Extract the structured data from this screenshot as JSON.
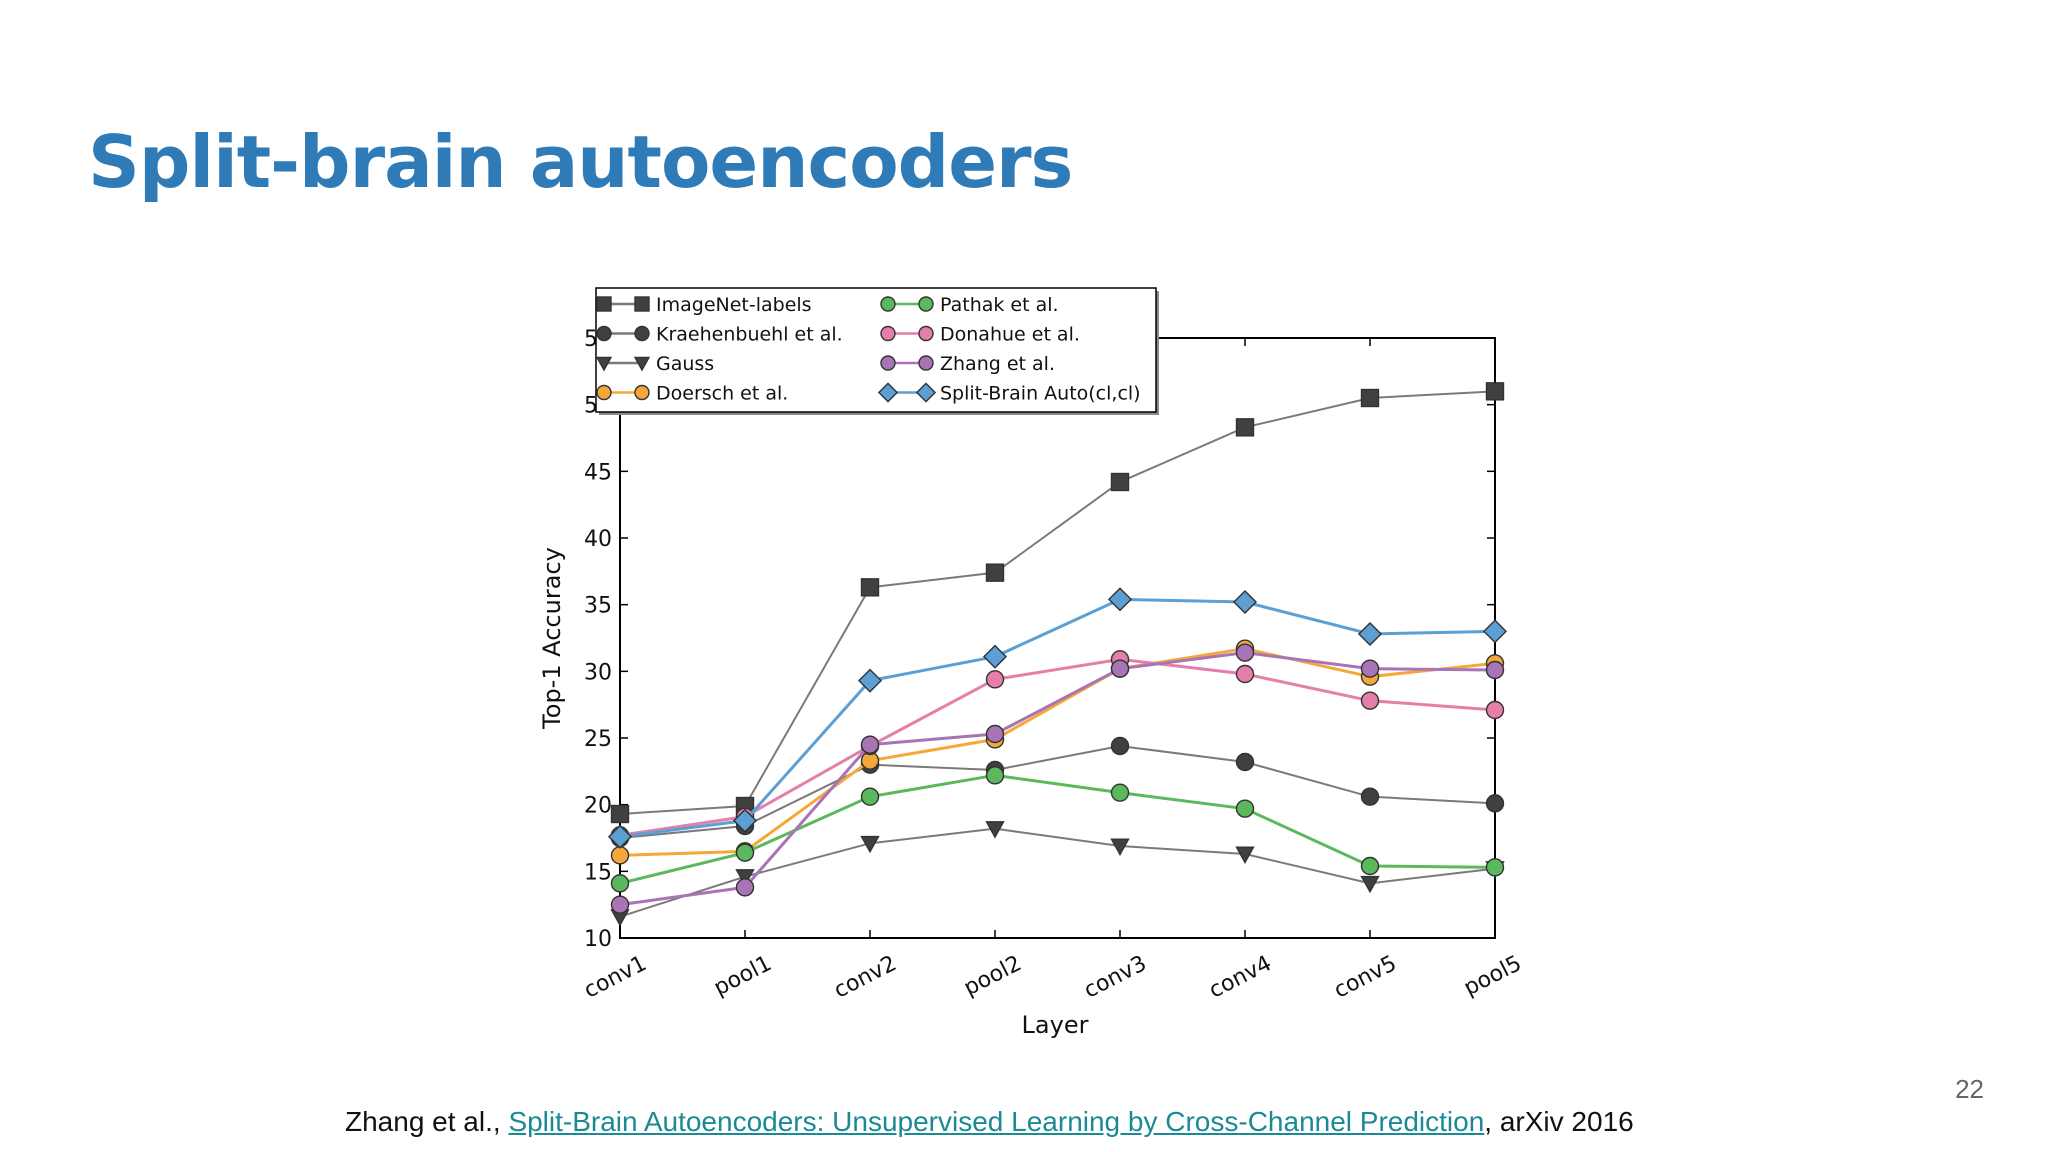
{
  "slide": {
    "title": "Split-brain autoencoders",
    "page_number": "22"
  },
  "citation": {
    "prefix": "Zhang et al., ",
    "link_text": "Split-Brain Autoencoders: Unsupervised Learning by Cross-Channel Prediction",
    "suffix": ", arXiv 2016"
  },
  "chart_data": {
    "type": "line",
    "xlabel": "Layer",
    "ylabel": "Top-1 Accuracy",
    "categories": [
      "conv1",
      "pool1",
      "conv2",
      "pool2",
      "conv3",
      "conv4",
      "conv5",
      "pool5"
    ],
    "ylim": [
      10,
      55
    ],
    "yticks": [
      10,
      15,
      20,
      25,
      30,
      35,
      40,
      45,
      50,
      55
    ],
    "grid": false,
    "legend_position": "top-left",
    "series": [
      {
        "name": "ImageNet-labels",
        "marker": "square",
        "color": "#404040",
        "line_color": "#7a7a7a",
        "values": [
          19.3,
          19.9,
          36.3,
          37.4,
          44.2,
          48.3,
          50.5,
          51.0
        ]
      },
      {
        "name": "Kraehenbuehl et al.",
        "marker": "circle",
        "color": "#404040",
        "line_color": "#7a7a7a",
        "values": [
          17.5,
          18.4,
          23.0,
          22.6,
          24.4,
          23.2,
          20.6,
          20.1
        ]
      },
      {
        "name": "Gauss",
        "marker": "triangle-down",
        "color": "#404040",
        "line_color": "#7a7a7a",
        "values": [
          11.6,
          14.6,
          17.1,
          18.2,
          16.9,
          16.3,
          14.1,
          15.2
        ]
      },
      {
        "name": "Doersch et al.",
        "marker": "circle",
        "color": "#f5a83a",
        "line_color": "#f5a83a",
        "values": [
          16.2,
          16.5,
          23.3,
          24.9,
          30.2,
          31.7,
          29.6,
          30.6
        ]
      },
      {
        "name": "Pathak et al.",
        "marker": "circle",
        "color": "#5cb85c",
        "line_color": "#5cb85c",
        "values": [
          14.1,
          16.4,
          20.6,
          22.2,
          20.9,
          19.7,
          15.4,
          15.3
        ]
      },
      {
        "name": "Donahue et al.",
        "marker": "circle",
        "color": "#e57fa9",
        "line_color": "#e57fa9",
        "values": [
          17.7,
          19.1,
          24.4,
          29.4,
          30.9,
          29.8,
          27.8,
          27.1
        ]
      },
      {
        "name": "Zhang et al.",
        "marker": "circle",
        "color": "#a974b5",
        "line_color": "#a974b5",
        "values": [
          12.5,
          13.8,
          24.5,
          25.3,
          30.2,
          31.4,
          30.2,
          30.1
        ]
      },
      {
        "name": "Split-Brain Auto(cl,cl)",
        "marker": "diamond",
        "color": "#5b9fd4",
        "line_color": "#5b9fd4",
        "values": [
          17.6,
          18.8,
          29.3,
          31.1,
          35.4,
          35.2,
          32.8,
          33.0
        ]
      }
    ]
  }
}
